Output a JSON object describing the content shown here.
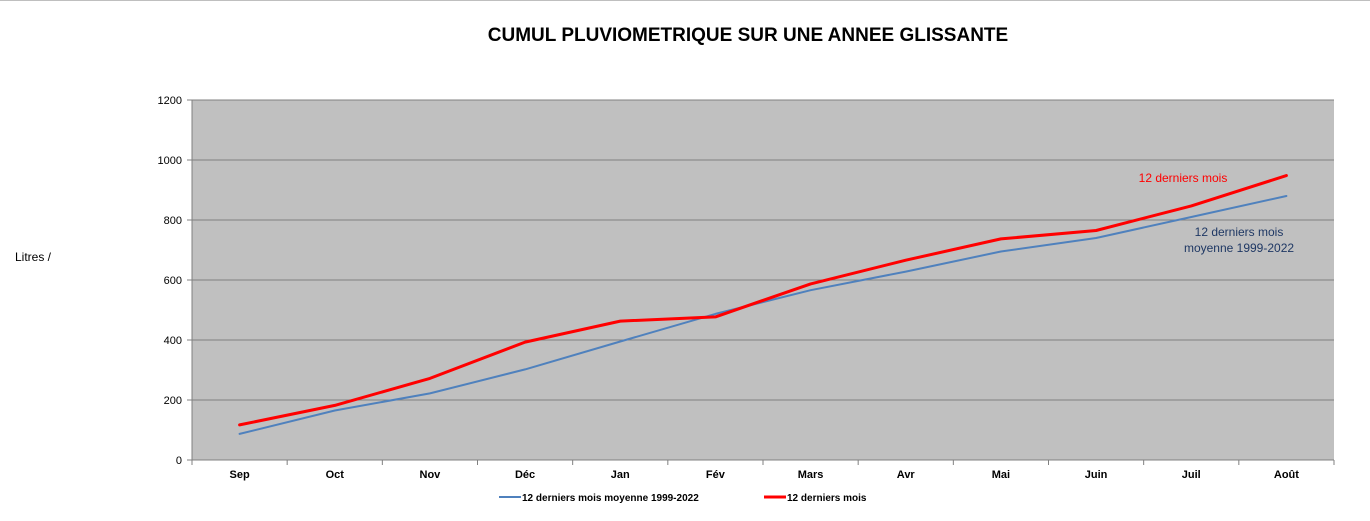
{
  "chart_data": {
    "type": "line",
    "title": "CUMUL PLUVIOMETRIQUE SUR UNE ANNEE GLISSANTE",
    "xlabel": "",
    "ylabel": "Litres /",
    "ylim": [
      0,
      1200
    ],
    "yticks": [
      0,
      200,
      400,
      600,
      800,
      1000,
      1200
    ],
    "grid": true,
    "legend_position": "bottom",
    "plot_background": "#c0c0c0",
    "categories": [
      "Sep",
      "Oct",
      "Nov",
      "Déc",
      "Jan",
      "Fév",
      "Mars",
      "Avr",
      "Mai",
      "Juin",
      "Juil",
      "Août"
    ],
    "series": [
      {
        "name": "12 derniers mois moyenne 1999-2022",
        "color": "#4f81bd",
        "values": [
          87,
          165,
          222,
          302,
          395,
          487,
          566,
          628,
          695,
          740,
          810,
          880
        ]
      },
      {
        "name": "12 derniers mois",
        "color": "#ff0000",
        "values": [
          117,
          182,
          272,
          393,
          463,
          477,
          587,
          666,
          737,
          765,
          847,
          948
        ]
      }
    ],
    "annotations": [
      {
        "lines": [
          "12 derniers mois"
        ],
        "color": "#ff0000"
      },
      {
        "lines": [
          "12 derniers mois",
          "moyenne 1999-2022"
        ],
        "color": "#1f3864"
      }
    ]
  }
}
